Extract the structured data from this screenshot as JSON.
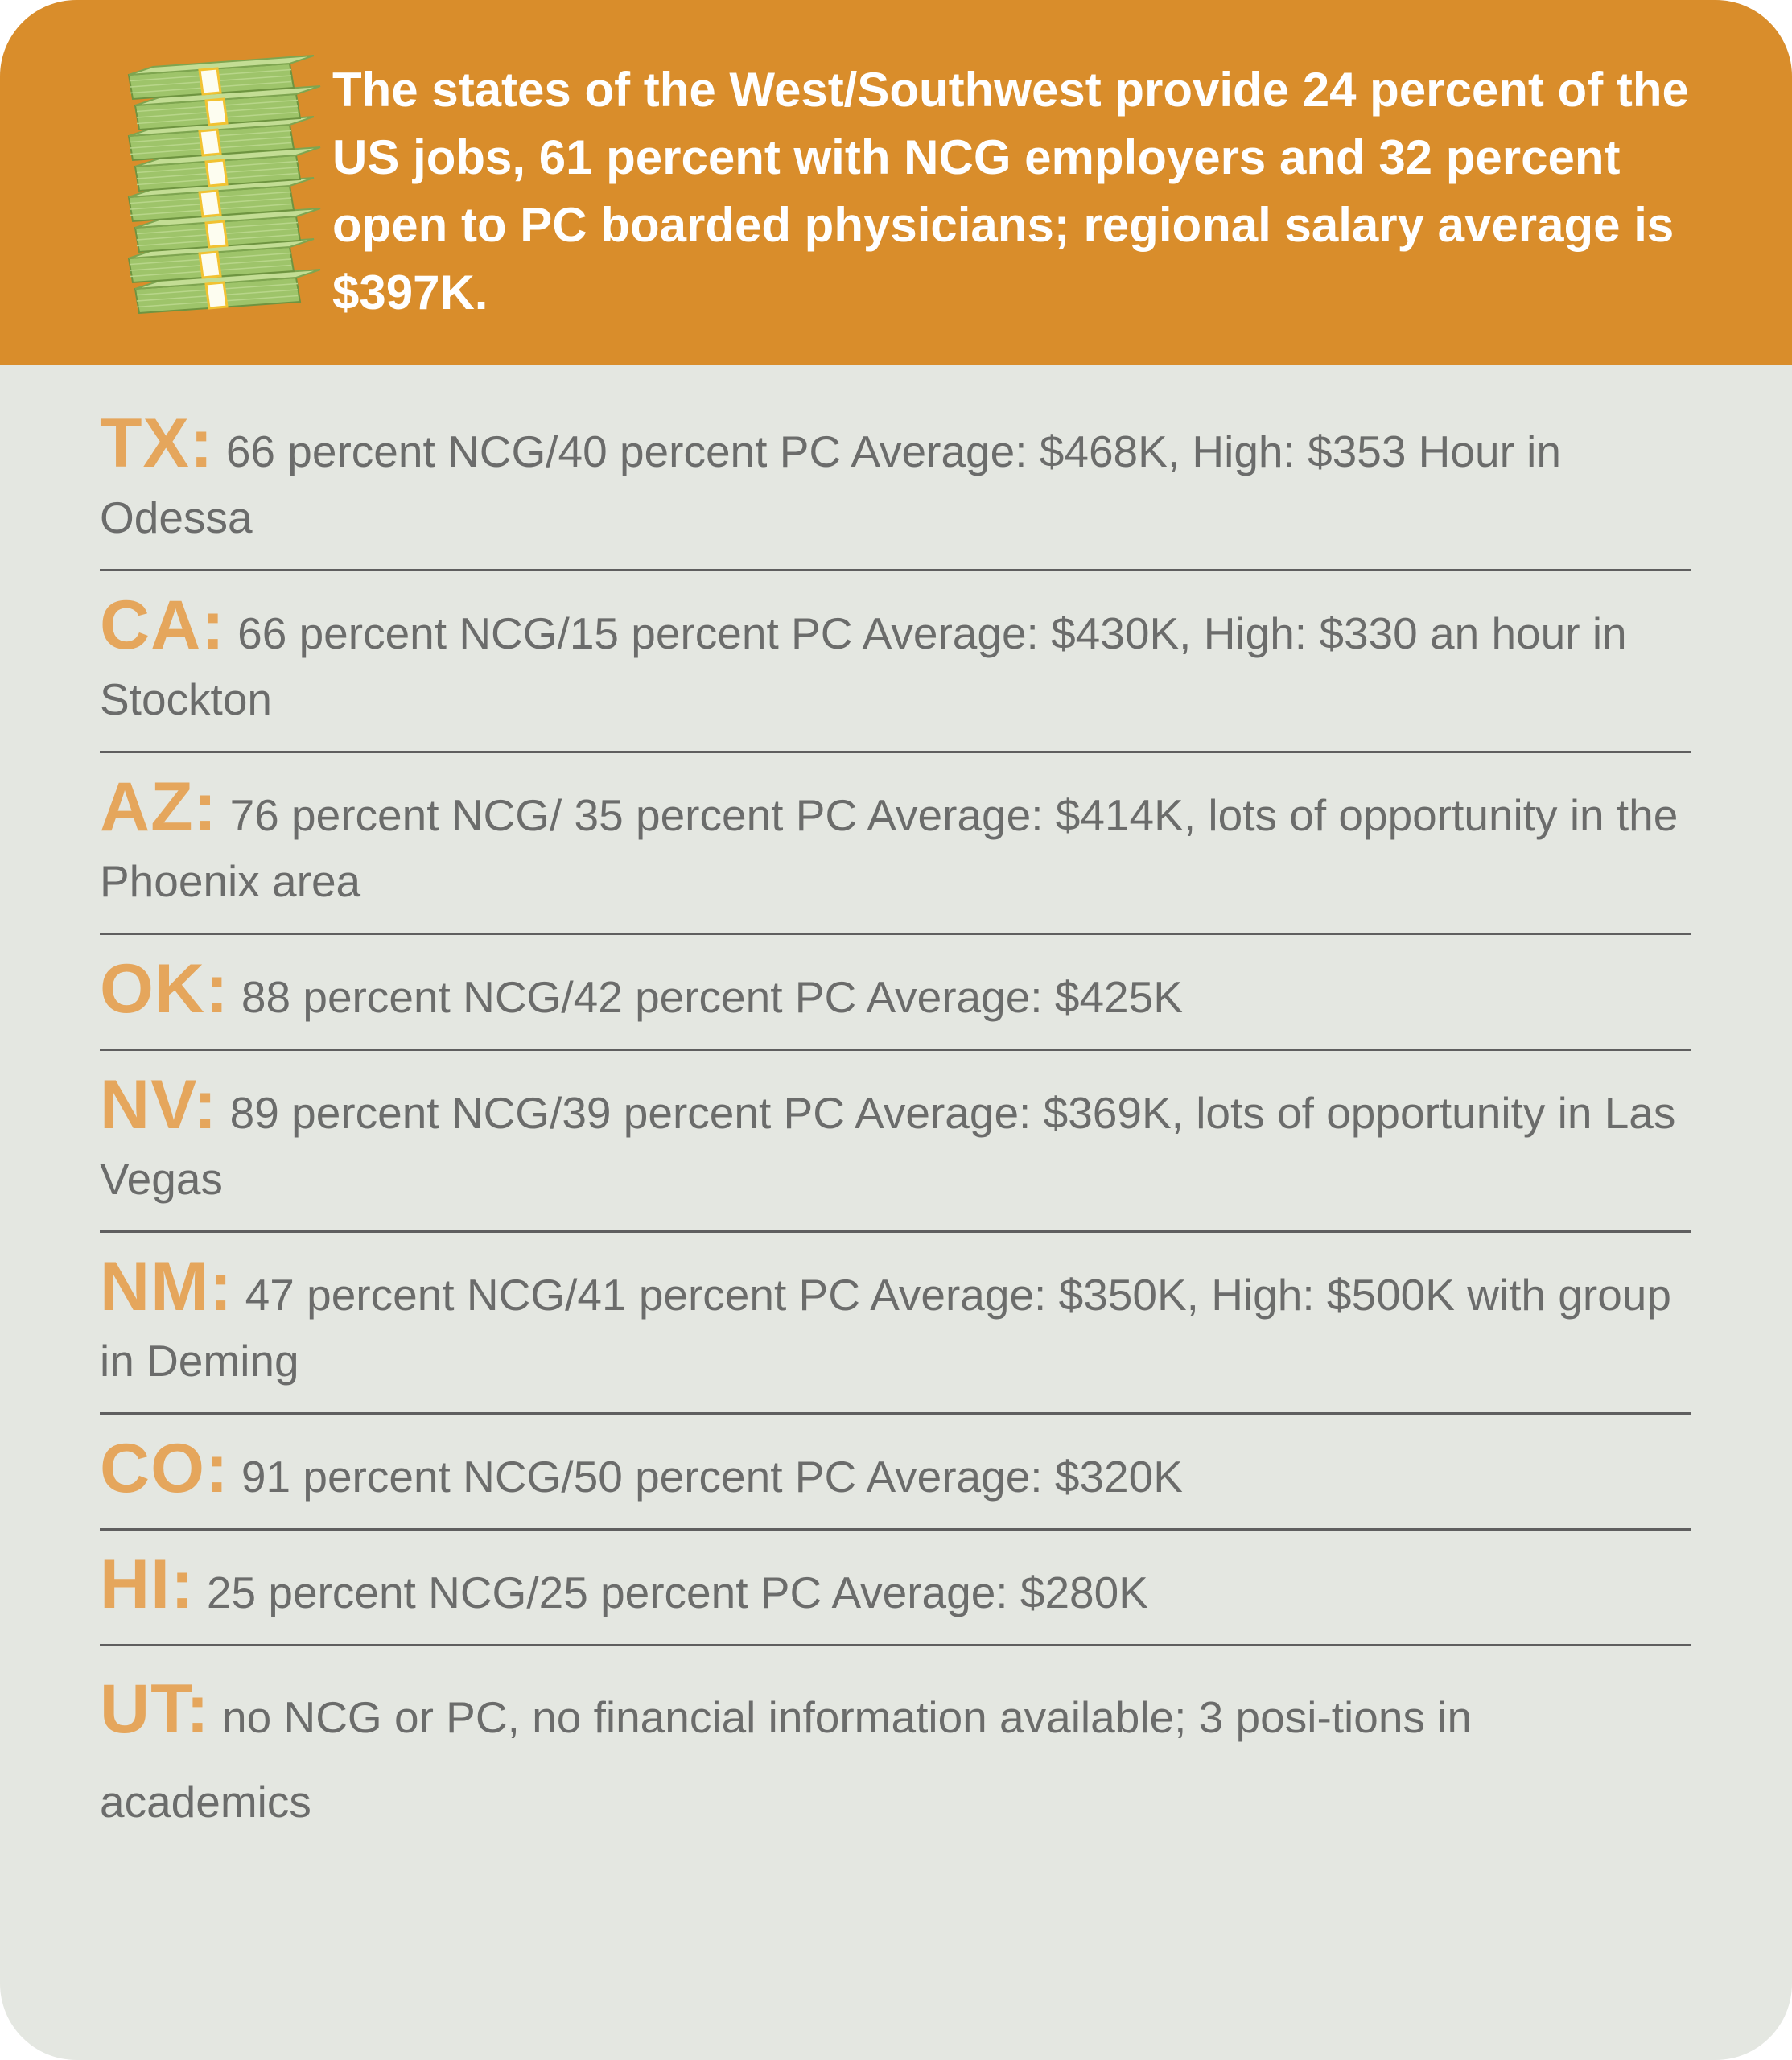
{
  "headline": "The states of the West/Southwest provide 24 percent of the US jobs, 61 percent with NCG employers and 32 percent open to PC boarded physicians; regional salary average is $397K.",
  "colors": {
    "header_bg": "#d98d2b",
    "card_bg": "#e4e7e1",
    "state_abbr": "#e5a65c",
    "body_text": "#6b6c6b",
    "divider": "#5f5f5f"
  },
  "icon": "money-stack-icon",
  "states": [
    {
      "abbr": "TX:",
      "text": "66 percent NCG/40 percent PC Average: $468K, High: $353 Hour in Odessa"
    },
    {
      "abbr": "CA:",
      "text": "66 percent NCG/15 percent PC Average: $430K, High: $330 an hour in Stockton"
    },
    {
      "abbr": "AZ:",
      "text": "76 percent NCG/ 35 percent PC Average: $414K, lots of opportunity in the Phoenix area"
    },
    {
      "abbr": "OK:",
      "text": "88 percent NCG/42 percent PC Average: $425K"
    },
    {
      "abbr": "NV:",
      "text": "89 percent NCG/39 percent PC Average: $369K, lots of opportunity in Las Vegas"
    },
    {
      "abbr": "NM:",
      "text": "47 percent NCG/41 percent PC Average: $350K, High: $500K with group in Deming"
    },
    {
      "abbr": "CO:",
      "text": "91 percent NCG/50 percent PC Average: $320K"
    },
    {
      "abbr": "HI:",
      "text": "25 percent NCG/25 percent PC Average: $280K"
    },
    {
      "abbr": "UT:",
      "text": "no NCG or PC, no financial information available; 3 posi-tions in academics"
    }
  ]
}
